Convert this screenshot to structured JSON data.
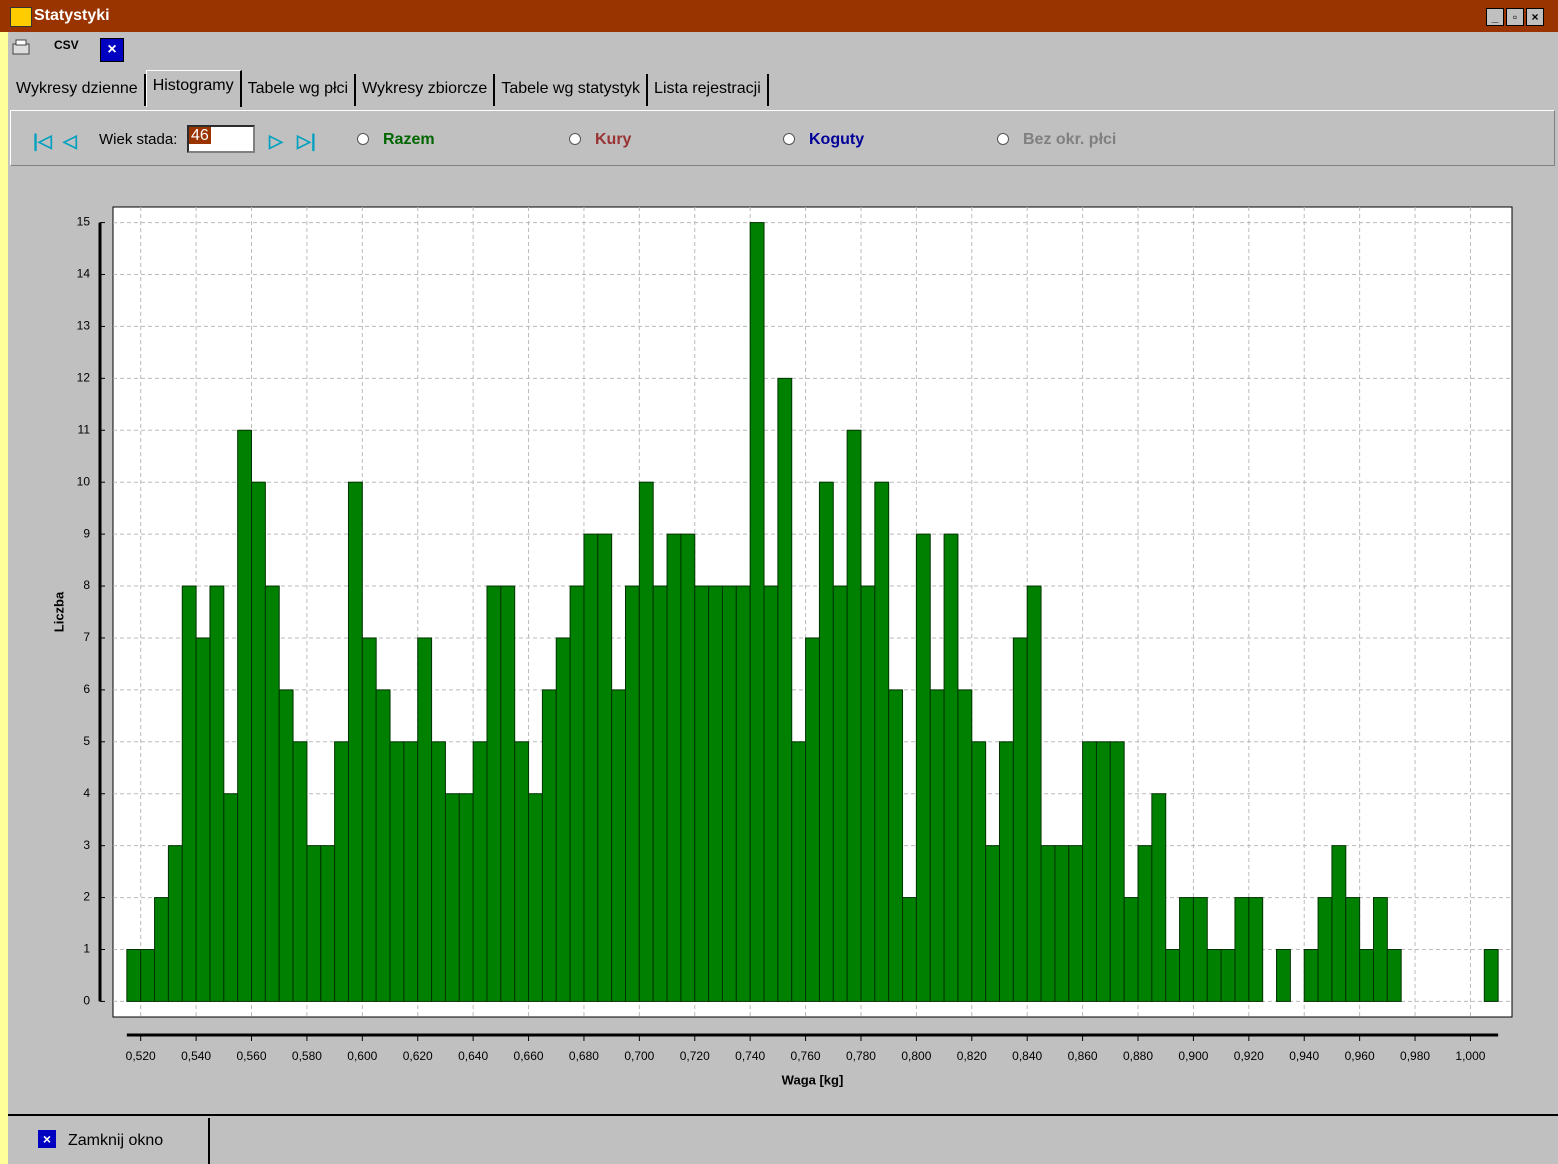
{
  "window": {
    "title": "Statystyki"
  },
  "toolbar": {
    "csv": "CSV"
  },
  "tabs": [
    "Wykresy dzienne",
    "Histogramy",
    "Tabele wg płci",
    "Wykresy zbiorcze",
    "Tabele wg statystyk",
    "Lista rejestracji"
  ],
  "filter": {
    "age_label": "Wiek stada:",
    "age_value": "46",
    "options": [
      "Razem",
      "Kury",
      "Koguty",
      "Bez okr. płci"
    ]
  },
  "footer": {
    "close_button": "Zamknij okno"
  },
  "chart_data": {
    "type": "histogram",
    "xlabel": "Waga [kg]",
    "ylabel": "Liczba",
    "color": "#008000",
    "grid": true,
    "bins": [
      0.515,
      0.52,
      0.525,
      0.53,
      0.535,
      0.54,
      0.545,
      0.55,
      0.555,
      0.56,
      0.565,
      0.57,
      0.575,
      0.58,
      0.585,
      0.59,
      0.595,
      0.6,
      0.605,
      0.61,
      0.615,
      0.62,
      0.625,
      0.63,
      0.635,
      0.64,
      0.645,
      0.65,
      0.655,
      0.66,
      0.665,
      0.67,
      0.675,
      0.68,
      0.685,
      0.69,
      0.695,
      0.7,
      0.705,
      0.71,
      0.715,
      0.72,
      0.725,
      0.73,
      0.735,
      0.74,
      0.745,
      0.75,
      0.755,
      0.76,
      0.765,
      0.77,
      0.775,
      0.78,
      0.785,
      0.79,
      0.795,
      0.8,
      0.805,
      0.81,
      0.815,
      0.82,
      0.825,
      0.83,
      0.835,
      0.84,
      0.845,
      0.85,
      0.855,
      0.86,
      0.865,
      0.87,
      0.875,
      0.88,
      0.885,
      0.89,
      0.895,
      0.9,
      0.905,
      0.91,
      0.915,
      0.92,
      0.925,
      0.93,
      0.935,
      0.94,
      0.945,
      0.95,
      0.955,
      0.96,
      0.965,
      0.97,
      0.975,
      0.98,
      0.985,
      0.99,
      0.995,
      1.0,
      1.005,
      1.01
    ],
    "values": [
      1,
      1,
      2,
      3,
      8,
      7,
      8,
      4,
      11,
      10,
      8,
      6,
      5,
      3,
      3,
      5,
      10,
      7,
      6,
      5,
      5,
      7,
      5,
      4,
      4,
      5,
      8,
      8,
      5,
      4,
      6,
      7,
      8,
      9,
      9,
      6,
      8,
      10,
      8,
      9,
      9,
      8,
      8,
      8,
      8,
      15,
      8,
      12,
      5,
      7,
      10,
      8,
      11,
      8,
      10,
      6,
      2,
      9,
      6,
      9,
      6,
      5,
      3,
      5,
      7,
      8,
      3,
      3,
      3,
      5,
      5,
      5,
      2,
      3,
      4,
      1,
      2,
      2,
      1,
      1,
      2,
      2,
      0,
      1,
      0,
      1,
      2,
      3,
      2,
      1,
      2,
      1,
      0,
      0,
      0,
      0,
      0,
      0,
      1
    ],
    "xlim": [
      0.51,
      1.015
    ],
    "ylim": [
      -0.3,
      15.3
    ],
    "xticks": [
      {
        "value": 0.52,
        "label": "0,520"
      },
      {
        "value": 0.54,
        "label": "0,540"
      },
      {
        "value": 0.56,
        "label": "0,560"
      },
      {
        "value": 0.58,
        "label": "0,580"
      },
      {
        "value": 0.6,
        "label": "0,600"
      },
      {
        "value": 0.62,
        "label": "0,620"
      },
      {
        "value": 0.64,
        "label": "0,640"
      },
      {
        "value": 0.66,
        "label": "0,660"
      },
      {
        "value": 0.68,
        "label": "0,680"
      },
      {
        "value": 0.7,
        "label": "0,700"
      },
      {
        "value": 0.72,
        "label": "0,720"
      },
      {
        "value": 0.74,
        "label": "0,740"
      },
      {
        "value": 0.76,
        "label": "0,760"
      },
      {
        "value": 0.78,
        "label": "0,780"
      },
      {
        "value": 0.8,
        "label": "0,800"
      },
      {
        "value": 0.82,
        "label": "0,820"
      },
      {
        "value": 0.84,
        "label": "0,840"
      },
      {
        "value": 0.86,
        "label": "0,860"
      },
      {
        "value": 0.88,
        "label": "0,880"
      },
      {
        "value": 0.9,
        "label": "0,900"
      },
      {
        "value": 0.92,
        "label": "0,920"
      },
      {
        "value": 0.94,
        "label": "0,940"
      },
      {
        "value": 0.96,
        "label": "0,960"
      },
      {
        "value": 0.98,
        "label": "0,980"
      },
      {
        "value": 1.0,
        "label": "1,000"
      }
    ],
    "yticks": [
      0,
      1,
      2,
      3,
      4,
      5,
      6,
      7,
      8,
      9,
      10,
      11,
      12,
      13,
      14,
      15
    ]
  }
}
